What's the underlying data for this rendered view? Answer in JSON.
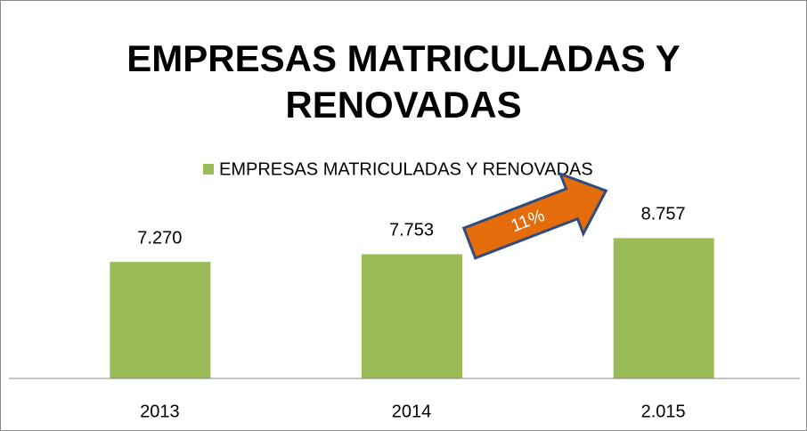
{
  "chart_data": {
    "type": "bar",
    "title": "EMPRESAS MATRICULADAS Y RENOVADAS",
    "categories": [
      "2013",
      "2014",
      "2.015"
    ],
    "series": [
      {
        "name": "EMPRESAS MATRICULADAS Y RENOVADAS",
        "color": "#9bbb59",
        "values": [
          7270,
          7753,
          8757
        ],
        "value_labels": [
          "7.270",
          "7.753",
          "8.757"
        ]
      }
    ],
    "ylim": [
      0,
      10000
    ],
    "annotations": [
      "11%"
    ]
  }
}
